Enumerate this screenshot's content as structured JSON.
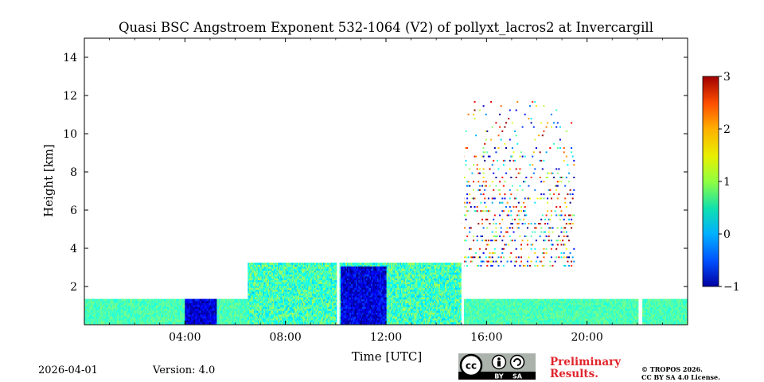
{
  "chart_data": {
    "type": "heatmap",
    "title": "Quasi BSC Angstroem Exponent 532-1064 (V2) of pollyxt_lacros2 at Invercargill",
    "xlabel": "Time [UTC]",
    "ylabel": "Height [km]",
    "xlim": [
      0,
      24
    ],
    "ylim": [
      0,
      15
    ],
    "xticks": [
      4,
      8,
      12,
      16,
      20
    ],
    "xtick_labels": [
      "04:00",
      "08:00",
      "12:00",
      "16:00",
      "20:00"
    ],
    "yticks": [
      2,
      4,
      6,
      8,
      10,
      12,
      14
    ],
    "ytick_labels": [
      "2",
      "4",
      "6",
      "8",
      "10",
      "12",
      "14"
    ],
    "colorbar": {
      "min": -1,
      "max": 3,
      "ticks": [
        -1,
        0,
        1,
        2,
        3
      ],
      "tick_labels": [
        "−1",
        "0",
        "1",
        "2",
        "3"
      ],
      "colormap": "jet"
    },
    "layers": [
      {
        "name": "boundary layer",
        "start": 0,
        "end": 24,
        "top_km": 1.3,
        "value_range": [
          0.6,
          1.0
        ]
      },
      {
        "name": "elevated aerosol layer",
        "start": 6.5,
        "end": 15.0,
        "top_km": 3.2,
        "value_range": [
          0.3,
          1.2
        ]
      },
      {
        "name": "low-value patch",
        "start": 4.0,
        "end": 5.2,
        "top_km": 1.3,
        "value_range": [
          -1.0,
          -0.3
        ]
      },
      {
        "name": "low-value patch",
        "start": 10.2,
        "end": 12.0,
        "top_km": 3.0,
        "value_range": [
          -1.0,
          -0.2
        ]
      },
      {
        "name": "scattered noise",
        "start": 15.0,
        "end": 19.5,
        "top_km": 11.5,
        "value_range": [
          -1.0,
          3.0
        ]
      }
    ],
    "data_gaps": [
      {
        "start": 10.05,
        "end": 10.15
      },
      {
        "start": 15.0,
        "end": 15.1
      },
      {
        "start": 22.05,
        "end": 22.2
      }
    ]
  },
  "footer": {
    "date": "2026-04-01",
    "version": "Version: 4.0",
    "preliminary": [
      "Preliminary",
      "Results."
    ],
    "copyright": [
      "© TROPOS 2026.",
      "CC BY SA 4.0 License."
    ],
    "license_badge": [
      "BY",
      "SA"
    ]
  },
  "colors": {
    "preliminary_text": "#e0252b",
    "badge_background": "#aab2ab",
    "badge_bar": "#000000"
  }
}
